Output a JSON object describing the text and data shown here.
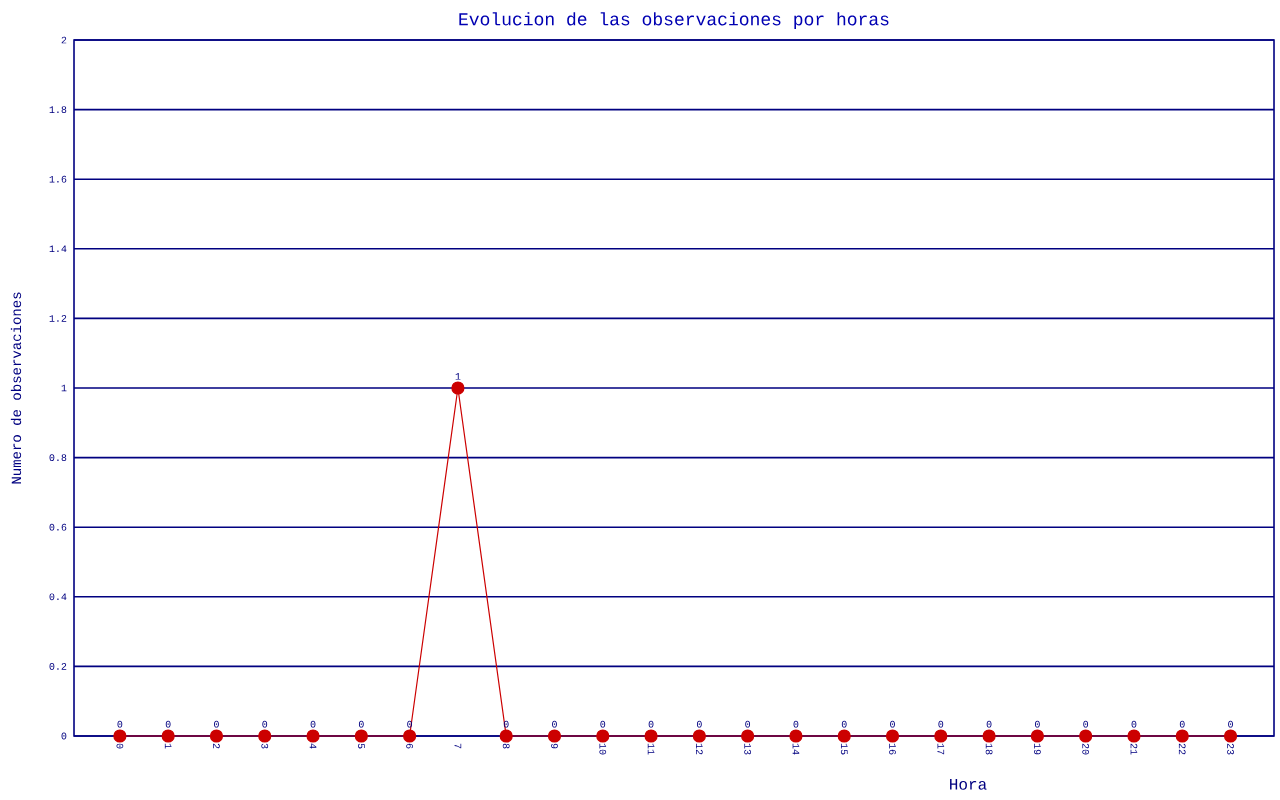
{
  "chart_data": {
    "type": "line",
    "title": "Evolucion de las observaciones por horas",
    "xlabel": "Hora",
    "ylabel": "Numero de observaciones",
    "categories": [
      "0",
      "1",
      "2",
      "3",
      "4",
      "5",
      "6",
      "7",
      "8",
      "9",
      "10",
      "11",
      "12",
      "13",
      "14",
      "15",
      "16",
      "17",
      "18",
      "19",
      "20",
      "21",
      "22",
      "23"
    ],
    "series": [
      {
        "color": "#cc0000",
        "values": [
          0,
          0,
          0,
          0,
          0,
          0,
          0,
          1,
          0,
          0,
          0,
          0,
          0,
          0,
          0,
          0,
          0,
          0,
          0,
          0,
          0,
          0,
          0,
          0
        ]
      }
    ],
    "ylim": [
      0,
      2
    ],
    "yticks": [
      0,
      0.2,
      0.4,
      0.6,
      0.8,
      1,
      1.2,
      1.4,
      1.6,
      1.8,
      2
    ],
    "grid": "y",
    "marker": "circle",
    "line_style": "solid",
    "data_labels": true
  }
}
